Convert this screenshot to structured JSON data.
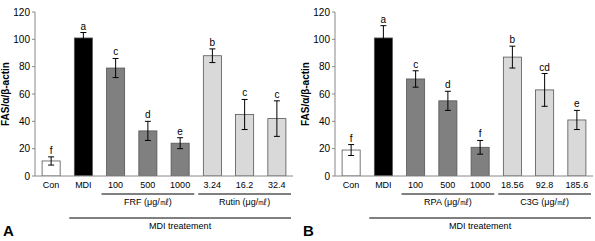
{
  "chart_data": [
    {
      "type": "bar",
      "title": "A",
      "y_label": "FAS/α/β-actin",
      "categories": [
        "Con",
        "MDI",
        "100",
        "500",
        "1000",
        "3.24",
        "16.2",
        "32.4"
      ],
      "values": [
        11,
        101,
        79,
        33,
        24,
        88,
        45,
        42
      ],
      "errors": [
        3,
        4,
        7,
        7,
        4,
        5,
        11,
        13
      ],
      "colors": [
        "#ffffff",
        "#000000",
        "#808080",
        "#808080",
        "#808080",
        "#d9d9d9",
        "#d9d9d9",
        "#d9d9d9"
      ],
      "ylim": [
        0,
        120
      ],
      "yticks": [
        0,
        20,
        40,
        60,
        80,
        100,
        120
      ],
      "grid": false,
      "annotations": {
        "letters": [
          "f",
          "a",
          "c",
          "d",
          "e",
          "b",
          "c",
          "c"
        ],
        "groups": [
          {
            "label": "FRF (μg/㎖)",
            "from": 2,
            "to": 4
          },
          {
            "label": "Rutin (μg/㎖)",
            "from": 5,
            "to": 7
          },
          {
            "label": "MDI treatement",
            "from": 1,
            "to": 7
          }
        ]
      }
    },
    {
      "type": "bar",
      "title": "B",
      "y_label": "FAS/α/β-actin",
      "categories": [
        "Con",
        "MDI",
        "100",
        "500",
        "1000",
        "18.56",
        "92.8",
        "185.6"
      ],
      "values": [
        19,
        101,
        71,
        55,
        21,
        87,
        63,
        41
      ],
      "errors": [
        4,
        9,
        6,
        7,
        5,
        8,
        12,
        7
      ],
      "colors": [
        "#ffffff",
        "#000000",
        "#808080",
        "#808080",
        "#808080",
        "#d9d9d9",
        "#d9d9d9",
        "#d9d9d9"
      ],
      "ylim": [
        0,
        120
      ],
      "yticks": [
        0,
        20,
        40,
        60,
        80,
        100,
        120
      ],
      "grid": false,
      "annotations": {
        "letters": [
          "f",
          "a",
          "c",
          "d",
          "f",
          "b",
          "cd",
          "e"
        ],
        "groups": [
          {
            "label": "RPA (μg/㎖)",
            "from": 2,
            "to": 4
          },
          {
            "label": "C3G (μg/㎖)",
            "from": 5,
            "to": 7
          },
          {
            "label": "MDI treatement",
            "from": 1,
            "to": 7
          }
        ]
      }
    }
  ]
}
